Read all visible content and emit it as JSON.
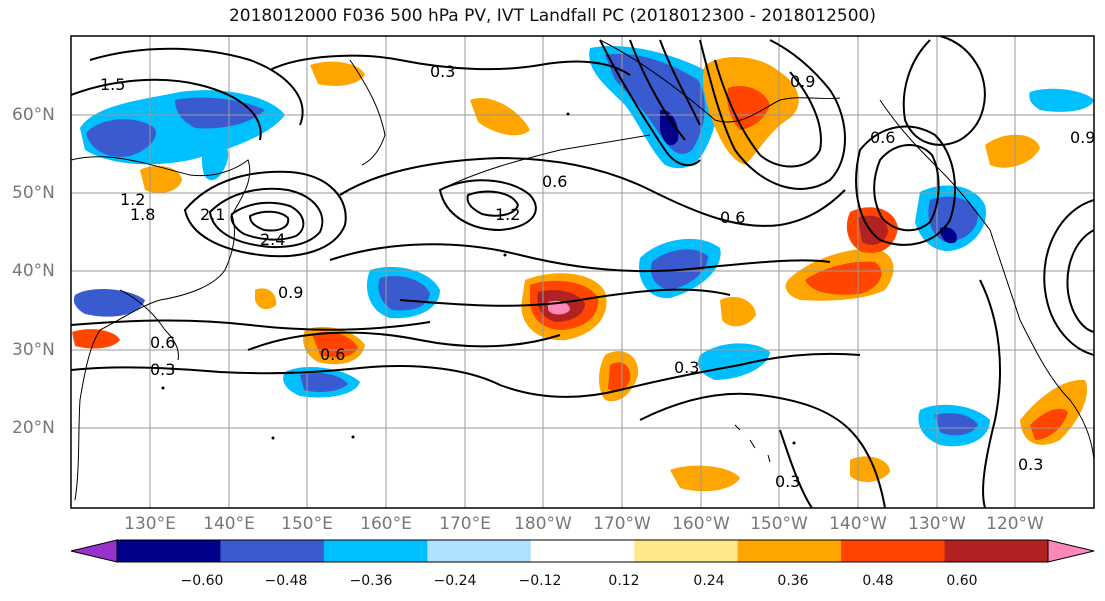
{
  "title": "2018012000 F036 500 hPa PV, IVT Landfall PC (2018012300 - 2018012500)",
  "lat_labels": [
    "60°N",
    "50°N",
    "40°N",
    "30°N",
    "20°N"
  ],
  "lon_labels": [
    "130°E",
    "140°E",
    "150°E",
    "160°E",
    "170°E",
    "180°W",
    "170°W",
    "160°W",
    "150°W",
    "140°W",
    "130°W",
    "120°W"
  ],
  "colorbar": {
    "labels": [
      "−0.60",
      "−0.48",
      "−0.36",
      "−0.24",
      "−0.12",
      "0.12",
      "0.24",
      "0.36",
      "0.48",
      "0.60"
    ],
    "colors": [
      "#9932cc",
      "#00008b",
      "#3a5bd0",
      "#00bfff",
      "#b0e2ff",
      "#ffffff",
      "#ffe88a",
      "#ffa500",
      "#ff4500",
      "#b22222",
      "#ff88bb"
    ]
  },
  "contour_labels": [
    "0.3",
    "0.3",
    "0.3",
    "0.3",
    "0.6",
    "0.6",
    "0.6",
    "0.6",
    "0.9",
    "0.9",
    "0.9",
    "1.2",
    "1.2",
    "1.5",
    "1.8",
    "2.1",
    "2.4",
    "0.6",
    "0.3"
  ],
  "colors": {
    "frame": "#000000",
    "grid": "#999999",
    "contour": "#000000",
    "coast": "#000000"
  }
}
